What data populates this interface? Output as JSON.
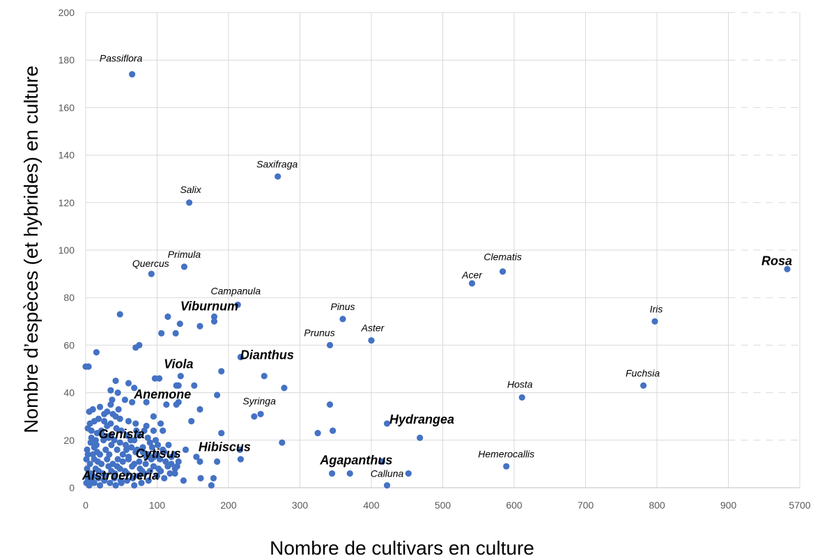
{
  "chart_data": {
    "type": "scatter",
    "xlabel": "Nombre de cultivars en culture",
    "ylabel": "Nombre d’espèces (et hybrides) en culture",
    "x_ticks": [
      "0",
      "100",
      "200",
      "300",
      "400",
      "500",
      "600",
      "700",
      "800",
      "900",
      "5700"
    ],
    "y_ticks": [
      "0",
      "20",
      "40",
      "60",
      "80",
      "100",
      "120",
      "140",
      "160",
      "180",
      "200"
    ],
    "xlim": [
      0,
      1000
    ],
    "ylim": [
      0,
      200
    ],
    "x_axis_break": {
      "after": 900,
      "last_tick_value": 5700
    },
    "grid": true,
    "marker_color": "#4472C4",
    "labeled_points": [
      {
        "name": "Passiflora",
        "x": 65,
        "y": 174,
        "emphasis": false
      },
      {
        "name": "Saxifraga",
        "x": 269,
        "y": 131,
        "emphasis": false
      },
      {
        "name": "Salix",
        "x": 145,
        "y": 120,
        "emphasis": false
      },
      {
        "name": "Primula",
        "x": 138,
        "y": 93,
        "emphasis": false
      },
      {
        "name": "Quercus",
        "x": 92,
        "y": 90,
        "emphasis": false
      },
      {
        "name": "Campanula",
        "x": 213,
        "y": 77,
        "emphasis": false
      },
      {
        "name": "Viburnum",
        "x": 180,
        "y": 72,
        "emphasis": true
      },
      {
        "name": "Pinus",
        "x": 360,
        "y": 71,
        "emphasis": false
      },
      {
        "name": "Prunus",
        "x": 342,
        "y": 60,
        "emphasis": false
      },
      {
        "name": "Aster",
        "x": 400,
        "y": 62,
        "emphasis": false
      },
      {
        "name": "Clematis",
        "x": 584,
        "y": 91,
        "emphasis": false
      },
      {
        "name": "Acer",
        "x": 541,
        "y": 86,
        "emphasis": false
      },
      {
        "name": "Rosa",
        "x": 5700,
        "y": 92,
        "emphasis": true
      },
      {
        "name": "Iris",
        "x": 797,
        "y": 70,
        "emphasis": false
      },
      {
        "name": "Fuchsia",
        "x": 781,
        "y": 43,
        "emphasis": false
      },
      {
        "name": "Hosta",
        "x": 611,
        "y": 38,
        "emphasis": false
      },
      {
        "name": "Dianthus",
        "x": 217,
        "y": 55,
        "emphasis": true
      },
      {
        "name": "Viola",
        "x": 133,
        "y": 47,
        "emphasis": true
      },
      {
        "name": "Anemone",
        "x": 88,
        "y": 36,
        "emphasis": true
      },
      {
        "name": "Syringa",
        "x": 245,
        "y": 31,
        "emphasis": false
      },
      {
        "name": "Hydrangea",
        "x": 422,
        "y": 27,
        "emphasis": true
      },
      {
        "name": "Genista",
        "x": 60,
        "y": 22,
        "emphasis": true
      },
      {
        "name": "Cytisus",
        "x": 88,
        "y": 12,
        "emphasis": true
      },
      {
        "name": "Hibiscus",
        "x": 216,
        "y": 16,
        "emphasis": true
      },
      {
        "name": "Hemerocallis",
        "x": 589,
        "y": 9,
        "emphasis": false
      },
      {
        "name": "Agapanthus",
        "x": 415,
        "y": 11,
        "emphasis": true
      },
      {
        "name": "Calluna",
        "x": 422,
        "y": 1,
        "emphasis": false
      },
      {
        "name": "Alstroemeria",
        "x": 40,
        "y": 6,
        "emphasis": true
      }
    ],
    "points": [
      [
        65,
        174
      ],
      [
        269,
        131
      ],
      [
        145,
        120
      ],
      [
        138,
        93
      ],
      [
        92,
        90
      ],
      [
        213,
        77
      ],
      [
        180,
        72
      ],
      [
        180,
        70
      ],
      [
        360,
        71
      ],
      [
        342,
        60
      ],
      [
        400,
        62
      ],
      [
        584,
        91
      ],
      [
        541,
        86
      ],
      [
        5700,
        92
      ],
      [
        797,
        70
      ],
      [
        781,
        43
      ],
      [
        611,
        38
      ],
      [
        589,
        9
      ],
      [
        452,
        6
      ],
      [
        422,
        1
      ],
      [
        468,
        21
      ],
      [
        422,
        27
      ],
      [
        415,
        11
      ],
      [
        345,
        6
      ],
      [
        370,
        6
      ],
      [
        342,
        35
      ],
      [
        346,
        24
      ],
      [
        325,
        23
      ],
      [
        278,
        42
      ],
      [
        250,
        47
      ],
      [
        217,
        55
      ],
      [
        190,
        49
      ],
      [
        184,
        39
      ],
      [
        190,
        23
      ],
      [
        217,
        12
      ],
      [
        216,
        16
      ],
      [
        184,
        11
      ],
      [
        179,
        4
      ],
      [
        176,
        1
      ],
      [
        161,
        4
      ],
      [
        160,
        11
      ],
      [
        155,
        13
      ],
      [
        140,
        16
      ],
      [
        137,
        3
      ],
      [
        275,
        19
      ],
      [
        245,
        31
      ],
      [
        236,
        30
      ],
      [
        160,
        33
      ],
      [
        152,
        43
      ],
      [
        148,
        28
      ],
      [
        130,
        36
      ],
      [
        130,
        43
      ],
      [
        127,
        35
      ],
      [
        113,
        35
      ],
      [
        133,
        47
      ],
      [
        115,
        72
      ],
      [
        132,
        69
      ],
      [
        126,
        65
      ],
      [
        106,
        65
      ],
      [
        160,
        68
      ],
      [
        48,
        73
      ],
      [
        75,
        60
      ],
      [
        70,
        59
      ],
      [
        15,
        57
      ],
      [
        4,
        51
      ],
      [
        0,
        51
      ],
      [
        42,
        45
      ],
      [
        60,
        44
      ],
      [
        68,
        42
      ],
      [
        35,
        41
      ],
      [
        65,
        36
      ],
      [
        85,
        36
      ],
      [
        97,
        46
      ],
      [
        103,
        46
      ],
      [
        127,
        43
      ],
      [
        45,
        40
      ],
      [
        37,
        37
      ],
      [
        20,
        34
      ],
      [
        10,
        33
      ],
      [
        5,
        32
      ],
      [
        30,
        32
      ],
      [
        38,
        31
      ],
      [
        42,
        30
      ],
      [
        48,
        29
      ],
      [
        60,
        28
      ],
      [
        70,
        27
      ],
      [
        85,
        26
      ],
      [
        95,
        30
      ],
      [
        105,
        27
      ],
      [
        108,
        24
      ],
      [
        95,
        24
      ],
      [
        82,
        24
      ],
      [
        75,
        22
      ],
      [
        68,
        20
      ],
      [
        58,
        22
      ],
      [
        50,
        24
      ],
      [
        43,
        25
      ],
      [
        35,
        27
      ],
      [
        26,
        28
      ],
      [
        18,
        29
      ],
      [
        12,
        28
      ],
      [
        6,
        27
      ],
      [
        3,
        25
      ],
      [
        8,
        24
      ],
      [
        16,
        23
      ],
      [
        24,
        22
      ],
      [
        32,
        21
      ],
      [
        40,
        20
      ],
      [
        48,
        19
      ],
      [
        56,
        18
      ],
      [
        64,
        17
      ],
      [
        72,
        16
      ],
      [
        80,
        15
      ],
      [
        88,
        14
      ],
      [
        96,
        13
      ],
      [
        104,
        12
      ],
      [
        112,
        11
      ],
      [
        120,
        10
      ],
      [
        128,
        9
      ],
      [
        98,
        20
      ],
      [
        102,
        8
      ],
      [
        90,
        7
      ],
      [
        82,
        6
      ],
      [
        74,
        5
      ],
      [
        66,
        4
      ],
      [
        58,
        3
      ],
      [
        50,
        2
      ],
      [
        42,
        1
      ],
      [
        34,
        2
      ],
      [
        26,
        3
      ],
      [
        18,
        4
      ],
      [
        10,
        5
      ],
      [
        4,
        6
      ],
      [
        2,
        8
      ],
      [
        6,
        10
      ],
      [
        12,
        12
      ],
      [
        20,
        14
      ],
      [
        28,
        16
      ],
      [
        36,
        18
      ],
      [
        44,
        16
      ],
      [
        52,
        14
      ],
      [
        60,
        12
      ],
      [
        68,
        10
      ],
      [
        76,
        8
      ],
      [
        84,
        10
      ],
      [
        92,
        12
      ],
      [
        100,
        14
      ],
      [
        108,
        16
      ],
      [
        116,
        18
      ],
      [
        124,
        14
      ],
      [
        118,
        6
      ],
      [
        110,
        4
      ],
      [
        100,
        5
      ],
      [
        88,
        3
      ],
      [
        78,
        2
      ],
      [
        68,
        1
      ],
      [
        58,
        6
      ],
      [
        48,
        8
      ],
      [
        38,
        10
      ],
      [
        30,
        12
      ],
      [
        22,
        10
      ],
      [
        14,
        8
      ],
      [
        8,
        6
      ],
      [
        3,
        4
      ],
      [
        1,
        2
      ],
      [
        5,
        1
      ],
      [
        12,
        2
      ],
      [
        20,
        1
      ],
      [
        28,
        5
      ],
      [
        36,
        7
      ],
      [
        44,
        9
      ],
      [
        52,
        11
      ],
      [
        60,
        13
      ],
      [
        70,
        15
      ],
      [
        80,
        17
      ],
      [
        90,
        19
      ],
      [
        15,
        18
      ],
      [
        25,
        20
      ],
      [
        35,
        22
      ],
      [
        45,
        12
      ],
      [
        55,
        7
      ],
      [
        65,
        9
      ],
      [
        75,
        11
      ],
      [
        85,
        13
      ],
      [
        95,
        9
      ],
      [
        105,
        7
      ],
      [
        115,
        9
      ],
      [
        125,
        8
      ],
      [
        120,
        13
      ],
      [
        110,
        15
      ],
      [
        130,
        11
      ],
      [
        125,
        6
      ],
      [
        16,
        15
      ],
      [
        24,
        6
      ],
      [
        32,
        9
      ],
      [
        40,
        4
      ],
      [
        10,
        14
      ],
      [
        2,
        16
      ],
      [
        14,
        20
      ],
      [
        22,
        24
      ],
      [
        30,
        26
      ],
      [
        46,
        33
      ],
      [
        55,
        37
      ],
      [
        26,
        31
      ],
      [
        7,
        19
      ],
      [
        1,
        12
      ],
      [
        3,
        14
      ],
      [
        9,
        3
      ],
      [
        17,
        11
      ],
      [
        33,
        14
      ],
      [
        41,
        6
      ],
      [
        49,
        3
      ],
      [
        57,
        16
      ],
      [
        63,
        20
      ],
      [
        71,
        24
      ],
      [
        79,
        7
      ],
      [
        87,
        21
      ],
      [
        93,
        17
      ],
      [
        101,
        18
      ],
      [
        35,
        35
      ],
      [
        12,
        17
      ],
      [
        18,
        7
      ],
      [
        8,
        21
      ]
    ]
  }
}
